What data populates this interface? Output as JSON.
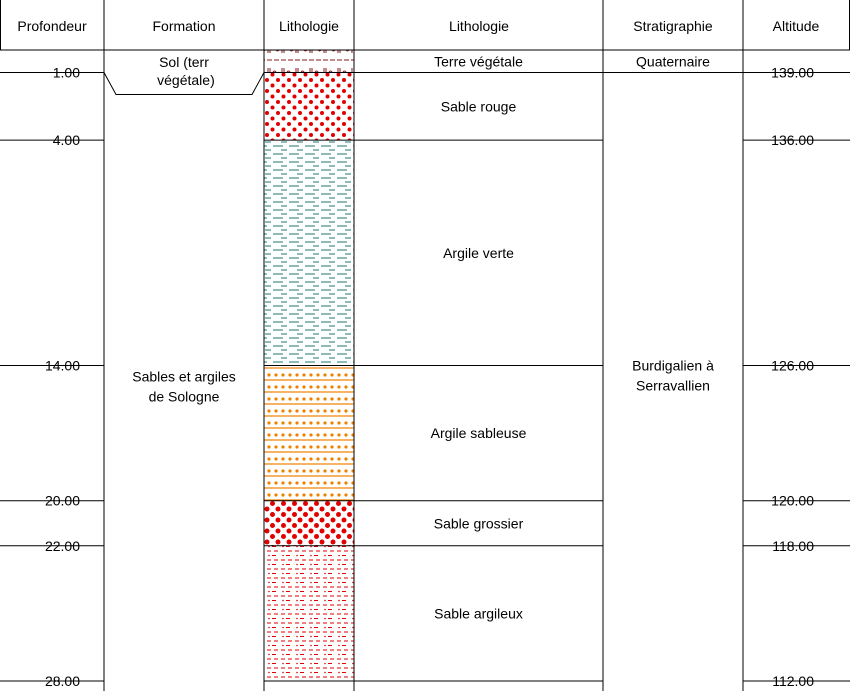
{
  "headers": {
    "profondeur": "Profondeur",
    "formation": "Formation",
    "lithologie_pattern": "Lithologie",
    "lithologie_desc": "Lithologie",
    "stratigraphie": "Stratigraphie",
    "altitude": "Altitude"
  },
  "depth_range": [
    0,
    28
  ],
  "layers": [
    {
      "top": 0,
      "bottom": 1,
      "description": "Terre végétale",
      "pattern": "soil",
      "color": "#8b1a1a"
    },
    {
      "top": 1,
      "bottom": 4,
      "description": "Sable rouge",
      "pattern": "dots",
      "color": "#e00000"
    },
    {
      "top": 4,
      "bottom": 14,
      "description": "Argile verte",
      "pattern": "dashes",
      "color": "#1a7a7a"
    },
    {
      "top": 14,
      "bottom": 20,
      "description": "Argile sableuse",
      "pattern": "dots-dashes",
      "color": "#f08000"
    },
    {
      "top": 20,
      "bottom": 22,
      "description": "Sable grossier",
      "pattern": "big-dots",
      "color": "#e00000"
    },
    {
      "top": 22,
      "bottom": 28,
      "description": "Sable argileux",
      "pattern": "fine-dashes",
      "color": "#e00000"
    }
  ],
  "depth_labels": [
    "1.00",
    "4.00",
    "14.00",
    "20.00",
    "22.00",
    "28.00"
  ],
  "altitude_labels": [
    "139.00",
    "136.00",
    "126.00",
    "120.00",
    "118.00",
    "112.00"
  ],
  "formations": [
    {
      "top": 0,
      "bottom": 1,
      "label": "Sol (terre végétale)"
    },
    {
      "top": 1,
      "bottom": 28,
      "label": "Sables et argiles de Sologne"
    }
  ],
  "stratigraphy": [
    {
      "top": 0,
      "bottom": 1,
      "label": "Quaternaire"
    },
    {
      "top": 1,
      "bottom": 28,
      "label": "Burdigalien à Serravallien"
    }
  ]
}
